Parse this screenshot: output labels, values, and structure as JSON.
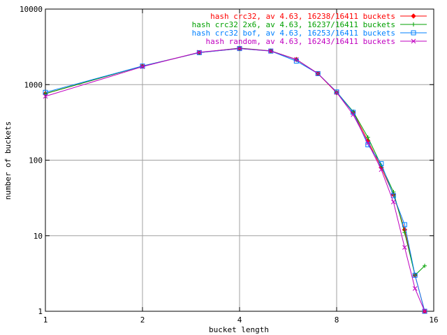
{
  "chart_data": {
    "type": "line",
    "xlabel": "bucket length",
    "ylabel": "number of buckets",
    "xscale": "log2",
    "yscale": "log10",
    "xlim": [
      1,
      16
    ],
    "ylim": [
      1,
      10000
    ],
    "grid": true,
    "legend_position": "top-right",
    "x_ticks": [
      {
        "value": 1,
        "label": "1"
      },
      {
        "value": 2,
        "label": "2"
      },
      {
        "value": 4,
        "label": "4"
      },
      {
        "value": 8,
        "label": "8"
      },
      {
        "value": 16,
        "label": "16"
      }
    ],
    "y_ticks": [
      {
        "value": 1,
        "label": "1"
      },
      {
        "value": 10,
        "label": "10"
      },
      {
        "value": 100,
        "label": "100"
      },
      {
        "value": 1000,
        "label": "1000"
      },
      {
        "value": 10000,
        "label": "10000"
      }
    ],
    "series": [
      {
        "name": "hash crc32, av 4.63, 16238/16411 buckets",
        "color": "#ff0000",
        "marker": "diamond",
        "points": [
          [
            1,
            760
          ],
          [
            2,
            1760
          ],
          [
            3,
            2650
          ],
          [
            4,
            3000
          ],
          [
            5,
            2790
          ],
          [
            6,
            2150
          ],
          [
            7,
            1400
          ],
          [
            8,
            780
          ],
          [
            9,
            430
          ],
          [
            10,
            180
          ],
          [
            11,
            80
          ],
          [
            12,
            35
          ],
          [
            13,
            12
          ],
          [
            14,
            3
          ],
          [
            15,
            1
          ]
        ]
      },
      {
        "name": "hash crc32 2x6, av 4.63, 16237/16411 buckets",
        "color": "#00a000",
        "marker": "plus",
        "points": [
          [
            1,
            760
          ],
          [
            2,
            1760
          ],
          [
            3,
            2650
          ],
          [
            4,
            3050
          ],
          [
            5,
            2800
          ],
          [
            6,
            2150
          ],
          [
            7,
            1400
          ],
          [
            8,
            800
          ],
          [
            9,
            440
          ],
          [
            10,
            200
          ],
          [
            11,
            85
          ],
          [
            12,
            38
          ],
          [
            13,
            11
          ],
          [
            14,
            3
          ],
          [
            15,
            4
          ]
        ]
      },
      {
        "name": "hash crc32 bof, av 4.63, 16253/16411 buckets",
        "color": "#0080ff",
        "marker": "square",
        "points": [
          [
            1,
            790
          ],
          [
            2,
            1760
          ],
          [
            3,
            2650
          ],
          [
            4,
            3000
          ],
          [
            5,
            2780
          ],
          [
            6,
            2050
          ],
          [
            7,
            1400
          ],
          [
            8,
            800
          ],
          [
            9,
            430
          ],
          [
            10,
            160
          ],
          [
            11,
            90
          ],
          [
            12,
            34
          ],
          [
            13,
            14
          ],
          [
            14,
            3
          ],
          [
            15,
            1
          ]
        ]
      },
      {
        "name": "hash random, av 4.63, 16243/16411 buckets",
        "color": "#c000c0",
        "marker": "x",
        "points": [
          [
            1,
            700
          ],
          [
            2,
            1730
          ],
          [
            3,
            2680
          ],
          [
            4,
            3020
          ],
          [
            5,
            2790
          ],
          [
            6,
            2150
          ],
          [
            7,
            1400
          ],
          [
            8,
            790
          ],
          [
            9,
            400
          ],
          [
            10,
            170
          ],
          [
            11,
            75
          ],
          [
            12,
            28
          ],
          [
            13,
            7
          ],
          [
            14,
            2
          ],
          [
            15,
            1
          ]
        ]
      }
    ]
  }
}
